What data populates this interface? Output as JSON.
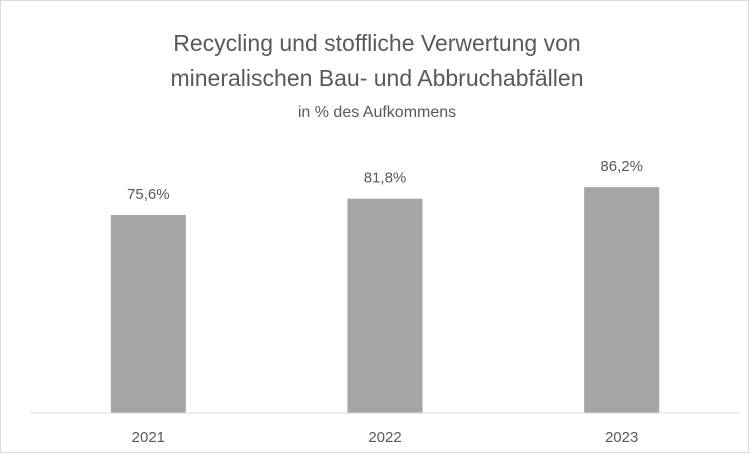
{
  "chart_data": {
    "type": "bar",
    "title": [
      "Recycling und  stoffliche Verwertung von",
      "mineralischen Bau- und Abbruchabfällen"
    ],
    "subtitle": "in % des Aufkommens",
    "categories": [
      "2021",
      "2022",
      "2023"
    ],
    "values": [
      75.6,
      81.8,
      86.2
    ],
    "value_labels": [
      "75,6%",
      "81,8%",
      "86,2%"
    ],
    "color": "#a5a5a5",
    "ylim": [
      0,
      100
    ]
  }
}
